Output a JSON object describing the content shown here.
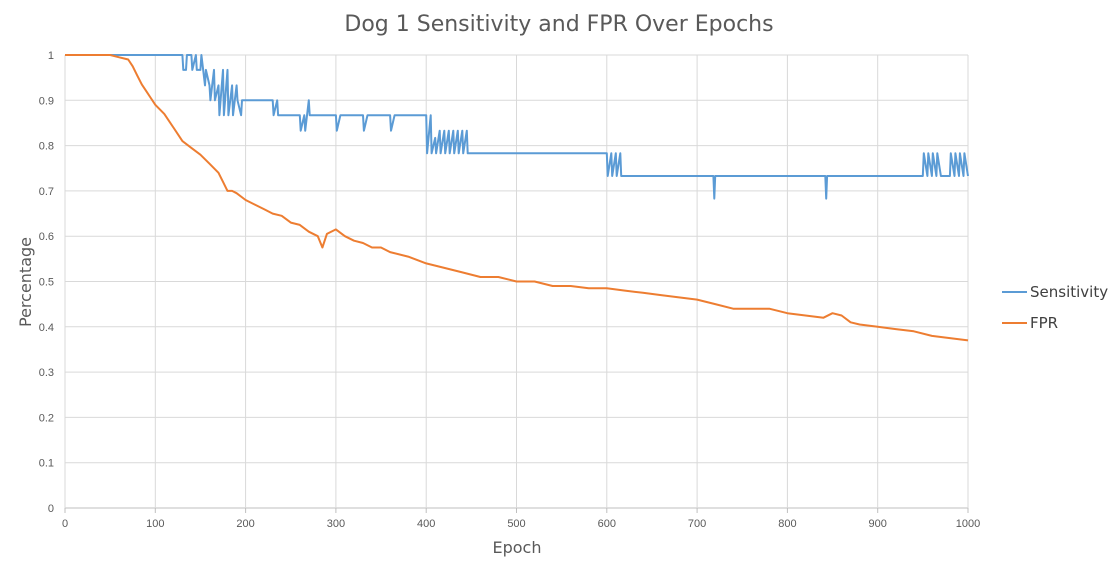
{
  "chart_data": {
    "type": "line",
    "title": "Dog 1 Sensitivity and FPR Over Epochs",
    "xlabel": "Epoch",
    "ylabel": "Percentage",
    "xlim": [
      0,
      1000
    ],
    "ylim": [
      0,
      1
    ],
    "x_ticks": [
      0,
      100,
      200,
      300,
      400,
      500,
      600,
      700,
      800,
      900,
      1000
    ],
    "y_ticks": [
      0,
      0.1,
      0.2,
      0.3,
      0.4,
      0.5,
      0.6,
      0.7,
      0.8,
      0.9,
      1
    ],
    "x_tick_labels": [
      "0",
      "100",
      "200",
      "300",
      "400",
      "500",
      "600",
      "700",
      "800",
      "900",
      "1000"
    ],
    "y_tick_labels": [
      "0",
      "0.1",
      "0.2",
      "0.3",
      "0.4",
      "0.5",
      "0.6",
      "0.7",
      "0.8",
      "0.9",
      "1"
    ],
    "grid": true,
    "legend_position": "right",
    "series": [
      {
        "name": "Sensitivity",
        "color": "#5b9bd5",
        "x": [
          0,
          60,
          125,
          130,
          131,
          134,
          135,
          140,
          141,
          145,
          146,
          150,
          151,
          155,
          156,
          160,
          161,
          165,
          166,
          170,
          171,
          175,
          176,
          180,
          181,
          185,
          186,
          190,
          191,
          195,
          196,
          200,
          201,
          230,
          231,
          235,
          236,
          240,
          241,
          260,
          261,
          265,
          266,
          270,
          271,
          300,
          301,
          305,
          306,
          330,
          331,
          335,
          336,
          360,
          361,
          365,
          366,
          400,
          401,
          405,
          406,
          410,
          411,
          415,
          416,
          420,
          421,
          425,
          426,
          430,
          431,
          435,
          436,
          440,
          441,
          445,
          446,
          450,
          451,
          600,
          601,
          605,
          606,
          610,
          611,
          615,
          616,
          618,
          619,
          718,
          719,
          720,
          721,
          842,
          843,
          844,
          845,
          950,
          951,
          955,
          956,
          960,
          961,
          965,
          966,
          970,
          971,
          980,
          981,
          985,
          986,
          990,
          991,
          995,
          996,
          1000
        ],
        "y": [
          1,
          1,
          1,
          1,
          0.967,
          0.967,
          1,
          1,
          0.967,
          1,
          0.967,
          0.967,
          1,
          0.933,
          0.967,
          0.933,
          0.9,
          0.967,
          0.9,
          0.933,
          0.867,
          0.967,
          0.867,
          0.967,
          0.867,
          0.933,
          0.867,
          0.933,
          0.9,
          0.867,
          0.9,
          0.9,
          0.9,
          0.9,
          0.867,
          0.9,
          0.867,
          0.867,
          0.867,
          0.867,
          0.833,
          0.867,
          0.833,
          0.9,
          0.867,
          0.867,
          0.833,
          0.867,
          0.867,
          0.867,
          0.833,
          0.867,
          0.867,
          0.867,
          0.833,
          0.867,
          0.867,
          0.867,
          0.783,
          0.867,
          0.783,
          0.817,
          0.783,
          0.833,
          0.783,
          0.833,
          0.783,
          0.833,
          0.783,
          0.833,
          0.783,
          0.833,
          0.783,
          0.833,
          0.783,
          0.833,
          0.783,
          0.783,
          0.783,
          0.783,
          0.733,
          0.783,
          0.733,
          0.783,
          0.733,
          0.783,
          0.733,
          0.733,
          0.733,
          0.733,
          0.683,
          0.733,
          0.733,
          0.733,
          0.683,
          0.733,
          0.733,
          0.733,
          0.783,
          0.733,
          0.783,
          0.733,
          0.783,
          0.733,
          0.783,
          0.733,
          0.733,
          0.733,
          0.783,
          0.733,
          0.783,
          0.733,
          0.783,
          0.733,
          0.783,
          0.733
        ]
      },
      {
        "name": "FPR",
        "color": "#ed7d31",
        "x": [
          0,
          50,
          60,
          70,
          75,
          80,
          85,
          90,
          95,
          100,
          110,
          120,
          130,
          140,
          150,
          160,
          170,
          175,
          180,
          185,
          190,
          200,
          210,
          220,
          230,
          240,
          250,
          260,
          270,
          280,
          285,
          290,
          300,
          310,
          320,
          330,
          340,
          350,
          360,
          380,
          400,
          420,
          440,
          460,
          480,
          500,
          520,
          540,
          560,
          580,
          600,
          620,
          640,
          660,
          680,
          700,
          720,
          740,
          760,
          780,
          800,
          820,
          840,
          850,
          860,
          870,
          880,
          900,
          920,
          940,
          960,
          980,
          1000
        ],
        "y": [
          1,
          1,
          0.995,
          0.99,
          0.975,
          0.955,
          0.935,
          0.92,
          0.905,
          0.89,
          0.87,
          0.84,
          0.81,
          0.795,
          0.78,
          0.76,
          0.74,
          0.72,
          0.7,
          0.7,
          0.695,
          0.68,
          0.67,
          0.66,
          0.65,
          0.645,
          0.63,
          0.625,
          0.61,
          0.6,
          0.575,
          0.605,
          0.615,
          0.6,
          0.59,
          0.585,
          0.575,
          0.575,
          0.565,
          0.555,
          0.54,
          0.53,
          0.52,
          0.51,
          0.51,
          0.5,
          0.5,
          0.49,
          0.49,
          0.485,
          0.485,
          0.48,
          0.475,
          0.47,
          0.465,
          0.46,
          0.45,
          0.44,
          0.44,
          0.44,
          0.43,
          0.425,
          0.42,
          0.43,
          0.425,
          0.41,
          0.405,
          0.4,
          0.395,
          0.39,
          0.38,
          0.375,
          0.37
        ]
      }
    ]
  }
}
